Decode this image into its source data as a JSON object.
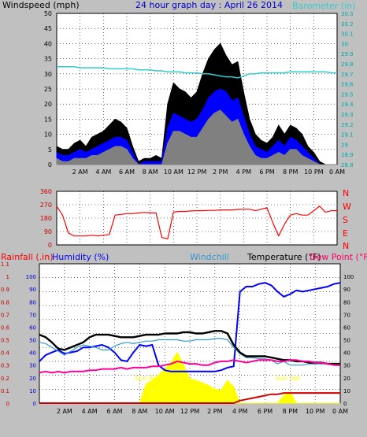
{
  "header": {
    "wind_title": "Windspeed (mph)",
    "graph_title": "24 hour graph day : April 26 2014",
    "baro_title": "Barometer (in)"
  },
  "x_ticks": [
    "2 AM",
    "4 AM",
    "6 AM",
    "8 AM",
    "10 AM",
    "12 PM",
    "2 PM",
    "4 PM",
    "6 PM",
    "8 PM",
    "10 PM",
    "0 AM"
  ],
  "colors": {
    "background": "#c0c0c0",
    "plot_bg": "#ffffff",
    "wind_gust": "#000000",
    "wind_avg": "#0000ff",
    "wind_low": "#808080",
    "barometer": "#33cccc",
    "wind_dir": "#ff0000",
    "temperature": "#000000",
    "humidity": "#0000ff",
    "windchill": "#3399cc",
    "dew_point": "#ff0099",
    "rainfall": "#cc0000",
    "sun": "#ffff00"
  },
  "dir_labels": [
    "N",
    "W",
    "S",
    "E",
    "N"
  ],
  "bottom_header": {
    "rainfall": "Rainfall (.in)",
    "humidity": "Humidity (%)",
    "windchill": "Windchill",
    "temperature": "Temperature (°F)",
    "dew_point": "Dew Point (°F)"
  },
  "annotations": {
    "sunrise": "Sun Rise",
    "sunset": "Sun Set"
  },
  "chart_data": [
    {
      "type": "line",
      "title": "24 hour graph day : April 26 2014",
      "x": [
        0,
        0.5,
        1,
        1.5,
        2,
        2.5,
        3,
        3.5,
        4,
        4.5,
        5,
        5.5,
        6,
        6.5,
        7,
        7.5,
        8,
        8.5,
        9,
        9.5,
        10,
        10.5,
        11,
        11.5,
        12,
        12.5,
        13,
        13.5,
        14,
        14.5,
        15,
        15.5,
        16,
        16.5,
        17,
        17.5,
        18,
        18.5,
        19,
        19.5,
        20,
        20.5,
        21,
        21.5,
        22,
        22.5,
        23,
        23.5,
        24
      ],
      "ylabel": "Windspeed (mph)",
      "ylim": [
        0,
        50
      ],
      "y_ticks": [
        0,
        5,
        10,
        15,
        20,
        25,
        30,
        35,
        40,
        45,
        50
      ],
      "y2label": "Barometer (in)",
      "y2lim": [
        28.8,
        30.3
      ],
      "y2_ticks": [
        "28.8",
        "28.9",
        "29",
        "29.1",
        "29.2",
        "29.3",
        "29.4",
        "29.5",
        "29.6",
        "29.7",
        "29.8",
        "29.9",
        "30",
        "30.1",
        "30.2",
        "30.3"
      ],
      "series": [
        {
          "name": "wind_gust",
          "values": [
            6,
            5,
            5,
            7,
            8,
            6,
            9,
            10,
            11,
            13,
            15,
            14,
            12,
            6,
            1,
            2,
            2,
            3,
            2,
            20,
            27,
            25,
            24,
            22,
            24,
            30,
            35,
            38,
            40,
            36,
            33,
            34,
            24,
            15,
            10,
            8,
            7,
            9,
            13,
            10,
            13,
            12,
            10,
            6,
            4,
            1,
            0,
            0,
            0
          ]
        },
        {
          "name": "wind_avg",
          "values": [
            4,
            3,
            3,
            4,
            5,
            4,
            5,
            6,
            7,
            8,
            9,
            9,
            8,
            4,
            0,
            1,
            1,
            1,
            1,
            12,
            17,
            16,
            15,
            14,
            15,
            18,
            22,
            24,
            25,
            24,
            21,
            22,
            16,
            10,
            6,
            5,
            4,
            6,
            8,
            6,
            9,
            8,
            6,
            4,
            2,
            0,
            0,
            0,
            0
          ]
        },
        {
          "name": "wind_low",
          "values": [
            2,
            1,
            1,
            2,
            2,
            2,
            3,
            3,
            4,
            5,
            6,
            6,
            5,
            2,
            0,
            0,
            0,
            0,
            0,
            7,
            11,
            11,
            10,
            9,
            9,
            12,
            15,
            17,
            18,
            16,
            14,
            15,
            10,
            6,
            3,
            2,
            2,
            3,
            4,
            3,
            5,
            5,
            3,
            2,
            1,
            0,
            0,
            0,
            0
          ]
        },
        {
          "name": "barometer",
          "axis": "right",
          "values": [
            29.77,
            29.77,
            29.77,
            29.77,
            29.76,
            29.76,
            29.76,
            29.76,
            29.76,
            29.75,
            29.75,
            29.75,
            29.75,
            29.75,
            29.74,
            29.74,
            29.74,
            29.73,
            29.73,
            29.72,
            29.72,
            29.72,
            29.71,
            29.71,
            29.71,
            29.7,
            29.7,
            29.69,
            29.68,
            29.67,
            29.67,
            29.66,
            29.68,
            29.7,
            29.7,
            29.71,
            29.71,
            29.71,
            29.71,
            29.71,
            29.72,
            29.72,
            29.72,
            29.72,
            29.72,
            29.72,
            29.72,
            29.71,
            29.71
          ]
        }
      ]
    },
    {
      "type": "line",
      "x": [
        0,
        0.5,
        1,
        1.5,
        2,
        2.5,
        3,
        3.5,
        4,
        4.5,
        5,
        5.5,
        6,
        6.5,
        7,
        7.5,
        8,
        8.5,
        9,
        9.5,
        10,
        10.5,
        11,
        11.5,
        12,
        12.5,
        13,
        13.5,
        14,
        14.5,
        15,
        15.5,
        16,
        16.5,
        17,
        17.5,
        18,
        18.5,
        19,
        19.5,
        20,
        20.5,
        21,
        21.5,
        22,
        22.5,
        23,
        23.5,
        24
      ],
      "ylim": [
        0,
        360
      ],
      "y_ticks": [
        0,
        90,
        180,
        270,
        360
      ],
      "series": [
        {
          "name": "wind_direction",
          "values": [
            260,
            200,
            80,
            60,
            60,
            60,
            65,
            60,
            65,
            70,
            200,
            205,
            210,
            210,
            215,
            218,
            215,
            215,
            50,
            40,
            220,
            225,
            225,
            228,
            230,
            230,
            232,
            232,
            235,
            235,
            235,
            238,
            240,
            240,
            230,
            240,
            250,
            150,
            60,
            140,
            200,
            210,
            200,
            200,
            230,
            260,
            220,
            230,
            230
          ]
        }
      ]
    },
    {
      "type": "line",
      "x": [
        0,
        0.5,
        1,
        1.5,
        2,
        2.5,
        3,
        3.5,
        4,
        4.5,
        5,
        5.5,
        6,
        6.5,
        7,
        7.5,
        8,
        8.5,
        9,
        9.5,
        10,
        10.5,
        11,
        11.5,
        12,
        12.5,
        13,
        13.5,
        14,
        14.5,
        15,
        15.5,
        16,
        16.5,
        17,
        17.5,
        18,
        18.5,
        19,
        19.5,
        20,
        20.5,
        21,
        21.5,
        22,
        22.5,
        23,
        23.5,
        24
      ],
      "y_left_ticks": [
        "0",
        "0.1",
        "0.2",
        "0.3",
        "0.4",
        "0.5",
        "0.6",
        "0.7",
        "0.8",
        "0.9",
        "1",
        "1.1"
      ],
      "y_left2_ticks": [
        0,
        10,
        20,
        30,
        40,
        50,
        60,
        70,
        80,
        90,
        100
      ],
      "y_right_ticks": [
        0,
        10,
        20,
        30,
        40,
        50,
        60,
        70,
        80,
        90,
        100
      ],
      "ylim_rain": [
        0,
        1.1
      ],
      "ylim_humidity": [
        0,
        100
      ],
      "ylim_temperature": [
        0,
        100
      ],
      "series": [
        {
          "name": "temperature",
          "values": [
            54,
            52,
            48,
            43,
            42,
            44,
            46,
            48,
            52,
            54,
            54,
            54,
            53,
            52,
            52,
            52,
            53,
            54,
            54,
            54,
            55,
            55,
            55,
            56,
            56,
            55,
            55,
            56,
            57,
            57,
            55,
            46,
            40,
            37,
            37,
            37,
            37,
            36,
            35,
            34,
            34,
            33,
            33,
            32,
            32,
            32,
            31,
            31,
            31
          ]
        },
        {
          "name": "humidity",
          "values": [
            33,
            38,
            40,
            42,
            39,
            40,
            41,
            44,
            44,
            45,
            46,
            44,
            40,
            34,
            33,
            40,
            46,
            45,
            46,
            30,
            26,
            25,
            25,
            25,
            25,
            25,
            25,
            25,
            25,
            26,
            28,
            29,
            88,
            92,
            92,
            94,
            95,
            93,
            88,
            84,
            86,
            89,
            88,
            89,
            90,
            91,
            92,
            94,
            95
          ]
        },
        {
          "name": "windchill",
          "values": [
            48,
            47,
            44,
            41,
            38,
            41,
            44,
            46,
            45,
            44,
            42,
            42,
            45,
            47,
            48,
            47,
            48,
            49,
            49,
            50,
            50,
            50,
            50,
            49,
            49,
            50,
            50,
            50,
            51,
            51,
            50,
            44,
            39,
            36,
            36,
            35,
            35,
            34,
            31,
            33,
            30,
            30,
            30,
            31,
            31,
            31,
            31,
            30,
            30
          ]
        },
        {
          "name": "dew_point",
          "values": [
            24,
            25,
            24,
            25,
            24,
            25,
            25,
            25,
            26,
            26,
            27,
            27,
            27,
            28,
            27,
            28,
            28,
            28,
            29,
            29,
            30,
            31,
            33,
            32,
            31,
            31,
            30,
            30,
            32,
            33,
            33,
            34,
            33,
            32,
            33,
            34,
            34,
            34,
            33,
            33,
            34,
            34,
            33,
            33,
            32,
            32,
            31,
            30,
            30
          ]
        },
        {
          "name": "rainfall",
          "axis": "left",
          "values": [
            0,
            0,
            0,
            0,
            0,
            0,
            0,
            0,
            0,
            0,
            0,
            0,
            0,
            0,
            0,
            0,
            0,
            0,
            0,
            0,
            0,
            0,
            0,
            0,
            0,
            0,
            0,
            0,
            0,
            0,
            0,
            0,
            0.02,
            0.03,
            0.04,
            0.05,
            0.06,
            0.07,
            0.07,
            0.08,
            0.08,
            0.08,
            0.08,
            0.08,
            0.08,
            0.08,
            0.08,
            0.08,
            0.08
          ]
        },
        {
          "name": "sun",
          "values": [
            0,
            0,
            0,
            0,
            0,
            0,
            0,
            0,
            0,
            0,
            0,
            0,
            0,
            0,
            0,
            0,
            0,
            15,
            18,
            22,
            27,
            32,
            40,
            30,
            19,
            18,
            16,
            14,
            11,
            10,
            18,
            13,
            0,
            0,
            0,
            0,
            0,
            0,
            0,
            6,
            9,
            0,
            0,
            0,
            0,
            0,
            0,
            0,
            0
          ]
        }
      ]
    }
  ]
}
